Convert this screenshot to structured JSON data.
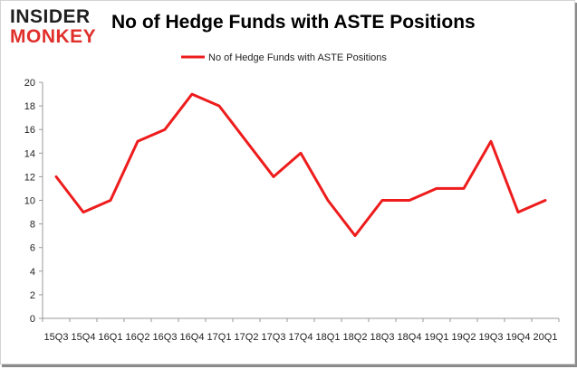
{
  "branding": {
    "logo_line1": "INSIDER",
    "logo_line2": "MONKEY"
  },
  "chart_data": {
    "type": "line",
    "title": "No of Hedge Funds with ASTE Positions",
    "xlabel": "",
    "ylabel": "",
    "ylim": [
      0,
      20
    ],
    "yticks": [
      0,
      2,
      4,
      6,
      8,
      10,
      12,
      14,
      16,
      18,
      20
    ],
    "grid": false,
    "legend_position": "top-center",
    "categories": [
      "15Q3",
      "15Q4",
      "16Q1",
      "16Q2",
      "16Q3",
      "16Q4",
      "17Q1",
      "17Q2",
      "17Q3",
      "17Q4",
      "18Q1",
      "18Q2",
      "18Q3",
      "18Q4",
      "19Q1",
      "19Q2",
      "19Q3",
      "19Q4",
      "20Q1"
    ],
    "series": [
      {
        "name": "No of Hedge Funds with ASTE Positions",
        "color": "#ee1c1c",
        "values": [
          12,
          9,
          10,
          15,
          16,
          19,
          18,
          15,
          12,
          14,
          10,
          7,
          10,
          10,
          11,
          11,
          15,
          9,
          10
        ]
      }
    ]
  }
}
